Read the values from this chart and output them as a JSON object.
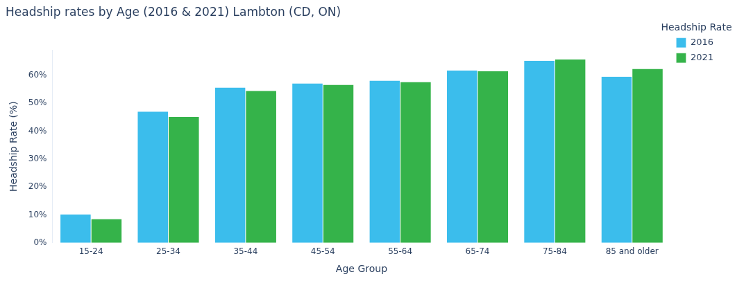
{
  "chart_data": {
    "type": "bar",
    "title": "Headship rates by Age (2016 & 2021) Lambton (CD, ON)",
    "xlabel": "Age Group",
    "ylabel": "Headship Rate (%)",
    "legend_title": "Headship Rate",
    "categories": [
      "15-24",
      "25-34",
      "35-44",
      "45-54",
      "55-64",
      "65-74",
      "75-84",
      "85 and older"
    ],
    "series": [
      {
        "name": "2016",
        "color": "#3bbdec",
        "values": [
          10.2,
          47.0,
          55.6,
          57.1,
          58.1,
          61.7,
          65.2,
          59.5
        ]
      },
      {
        "name": "2021",
        "color": "#35b34a",
        "values": [
          8.5,
          45.1,
          54.4,
          56.6,
          57.6,
          61.4,
          65.7,
          62.3
        ]
      }
    ],
    "yticks": [
      {
        "value": 0,
        "label": "0%"
      },
      {
        "value": 10,
        "label": "10%"
      },
      {
        "value": 20,
        "label": "20%"
      },
      {
        "value": 30,
        "label": "30%"
      },
      {
        "value": 40,
        "label": "40%"
      },
      {
        "value": 50,
        "label": "50%"
      },
      {
        "value": 60,
        "label": "60%"
      }
    ],
    "ylim": [
      0,
      69
    ],
    "grid": false,
    "legend": "top right"
  }
}
